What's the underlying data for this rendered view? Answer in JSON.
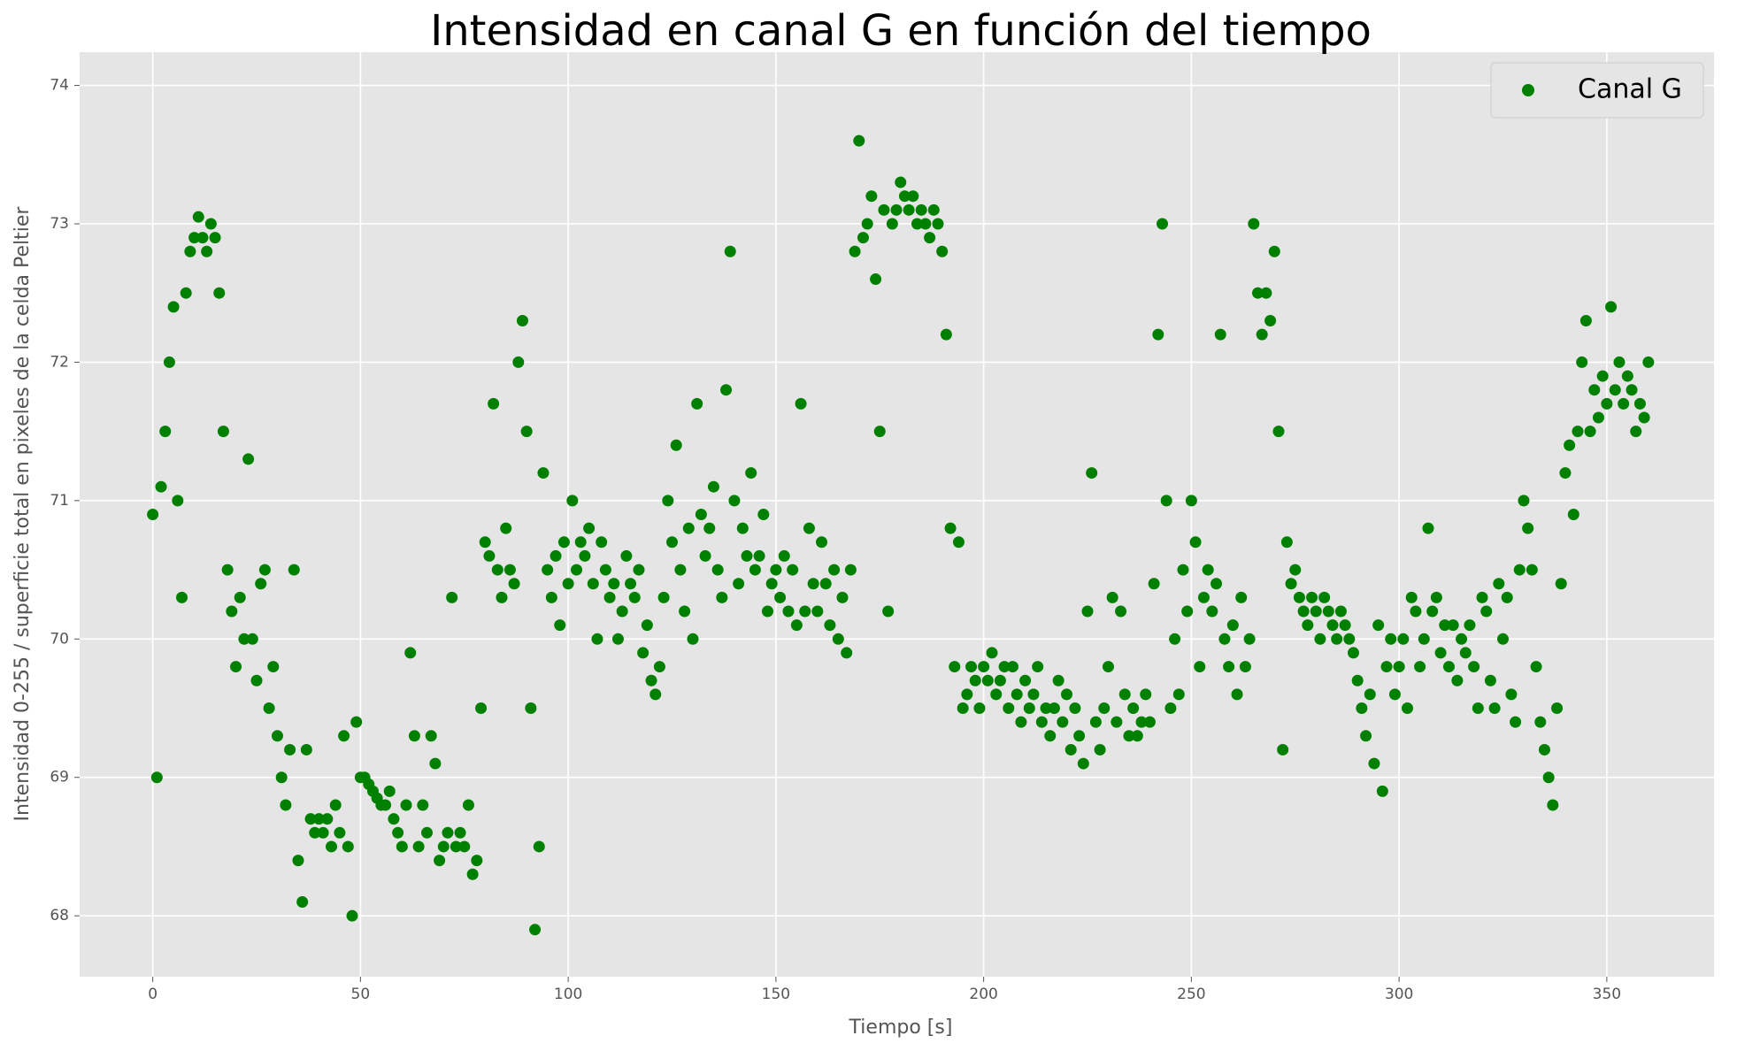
{
  "chart_data": {
    "type": "scatter",
    "title": "Intensidad en canal G en función del tiempo",
    "x_label": "Tiempo [s]",
    "y_label": "Intensidad 0-255 / superficie total en pixeles de la celda Peltier",
    "xlim": [
      -17.6,
      375.8
    ],
    "ylim": [
      67.56,
      74.24
    ],
    "xticks": [
      0,
      50,
      100,
      150,
      200,
      250,
      300,
      350
    ],
    "yticks": [
      68,
      69,
      70,
      71,
      72,
      73,
      74
    ],
    "grid": true,
    "legend": "upper right",
    "series": [
      {
        "name": "Canal G",
        "color": "#008000",
        "x": [
          0,
          1,
          2,
          3,
          4,
          5,
          6,
          7,
          8,
          9,
          10,
          11,
          12,
          13,
          14,
          15,
          16,
          17,
          18,
          19,
          20,
          21,
          22,
          23,
          24,
          25,
          26,
          27,
          28,
          29,
          30,
          31,
          32,
          33,
          34,
          35,
          36,
          37,
          38,
          39,
          40,
          41,
          42,
          43,
          44,
          45,
          46,
          47,
          48,
          49,
          50,
          51,
          52,
          53,
          54,
          55,
          56,
          57,
          58,
          59,
          60,
          61,
          62,
          63,
          64,
          65,
          66,
          67,
          68,
          69,
          70,
          71,
          72,
          73,
          74,
          75,
          76,
          77,
          78,
          79,
          80,
          81,
          82,
          83,
          84,
          85,
          86,
          87,
          88,
          89,
          90,
          91,
          92,
          93,
          94,
          95,
          96,
          97,
          98,
          99,
          100,
          101,
          102,
          103,
          104,
          105,
          106,
          107,
          108,
          109,
          110,
          111,
          112,
          113,
          114,
          115,
          116,
          117,
          118,
          119,
          120,
          121,
          122,
          123,
          124,
          125,
          126,
          127,
          128,
          129,
          130,
          131,
          132,
          133,
          134,
          135,
          136,
          137,
          138,
          139,
          140,
          141,
          142,
          143,
          144,
          145,
          146,
          147,
          148,
          149,
          150,
          151,
          152,
          153,
          154,
          155,
          156,
          157,
          158,
          159,
          160,
          161,
          162,
          163,
          164,
          165,
          166,
          167,
          168,
          169,
          170,
          171,
          172,
          173,
          174,
          175,
          176,
          177,
          178,
          179,
          180,
          181,
          182,
          183,
          184,
          185,
          186,
          187,
          188,
          189,
          190,
          191,
          192,
          193,
          194,
          195,
          196,
          197,
          198,
          199,
          200,
          201,
          202,
          203,
          204,
          205,
          206,
          207,
          208,
          209,
          210,
          211,
          212,
          213,
          214,
          215,
          216,
          217,
          218,
          219,
          220,
          221,
          222,
          223,
          224,
          225,
          226,
          227,
          228,
          229,
          230,
          231,
          232,
          233,
          234,
          235,
          236,
          237,
          238,
          239,
          240,
          241,
          242,
          243,
          244,
          245,
          246,
          247,
          248,
          249,
          250,
          251,
          252,
          253,
          254,
          255,
          256,
          257,
          258,
          259,
          260,
          261,
          262,
          263,
          264,
          265,
          266,
          267,
          268,
          269,
          270,
          271,
          272,
          273,
          274,
          275,
          276,
          277,
          278,
          279,
          280,
          281,
          282,
          283,
          284,
          285,
          286,
          287,
          288,
          289,
          290,
          291,
          292,
          293,
          294,
          295,
          296,
          297,
          298,
          299,
          300,
          301,
          302,
          303,
          304,
          305,
          306,
          307,
          308,
          309,
          310,
          311,
          312,
          313,
          314,
          315,
          316,
          317,
          318,
          319,
          320,
          321,
          322,
          323,
          324,
          325,
          326,
          327,
          328,
          329,
          330,
          331,
          332,
          333,
          334,
          335,
          336,
          337,
          338,
          339,
          340,
          341,
          342,
          343,
          344,
          345,
          346,
          347,
          348,
          349,
          350,
          351,
          352,
          353,
          354,
          355,
          356,
          357,
          358,
          359,
          360
        ],
        "values": [
          70.9,
          69.0,
          71.1,
          71.5,
          72.0,
          72.4,
          71.0,
          70.3,
          72.5,
          72.8,
          72.9,
          73.05,
          72.9,
          72.8,
          73.0,
          72.9,
          72.5,
          71.5,
          70.5,
          70.2,
          69.8,
          70.3,
          70.0,
          71.3,
          70.0,
          69.7,
          70.4,
          70.5,
          69.5,
          69.8,
          69.3,
          69.0,
          68.8,
          69.2,
          70.5,
          68.4,
          68.1,
          69.2,
          68.7,
          68.6,
          68.7,
          68.6,
          68.7,
          68.5,
          68.8,
          68.6,
          69.3,
          68.5,
          68.0,
          69.4,
          69.0,
          69.0,
          68.95,
          68.9,
          68.85,
          68.8,
          68.8,
          68.9,
          68.7,
          68.6,
          68.5,
          68.8,
          69.9,
          69.3,
          68.5,
          68.8,
          68.6,
          69.3,
          69.1,
          68.4,
          68.5,
          68.6,
          70.3,
          68.5,
          68.6,
          68.5,
          68.8,
          68.3,
          68.4,
          69.5,
          70.7,
          70.6,
          71.7,
          70.5,
          70.3,
          70.8,
          70.5,
          70.4,
          72.0,
          72.3,
          71.5,
          69.5,
          67.9,
          68.5,
          71.2,
          70.5,
          70.3,
          70.6,
          70.1,
          70.7,
          70.4,
          71.0,
          70.5,
          70.7,
          70.6,
          70.8,
          70.4,
          70.0,
          70.7,
          70.5,
          70.3,
          70.4,
          70.0,
          70.2,
          70.6,
          70.4,
          70.3,
          70.5,
          69.9,
          70.1,
          69.7,
          69.6,
          69.8,
          70.3,
          71.0,
          70.7,
          71.4,
          70.5,
          70.2,
          70.8,
          70.0,
          71.7,
          70.9,
          70.6,
          70.8,
          71.1,
          70.5,
          70.3,
          71.8,
          72.8,
          71.0,
          70.4,
          70.8,
          70.6,
          71.2,
          70.5,
          70.6,
          70.9,
          70.2,
          70.4,
          70.5,
          70.3,
          70.6,
          70.2,
          70.5,
          70.1,
          71.7,
          70.2,
          70.8,
          70.4,
          70.2,
          70.7,
          70.4,
          70.1,
          70.5,
          70.0,
          70.3,
          69.9,
          70.5,
          72.8,
          73.6,
          72.9,
          73.0,
          73.2,
          72.6,
          71.5,
          73.1,
          70.2,
          73.0,
          73.1,
          73.3,
          73.2,
          73.1,
          73.2,
          73.0,
          73.1,
          73.0,
          72.9,
          73.1,
          73.0,
          72.8,
          72.2,
          70.8,
          69.8,
          70.7,
          69.5,
          69.6,
          69.8,
          69.7,
          69.5,
          69.8,
          69.7,
          69.9,
          69.6,
          69.7,
          69.8,
          69.5,
          69.8,
          69.6,
          69.4,
          69.7,
          69.5,
          69.6,
          69.8,
          69.4,
          69.5,
          69.3,
          69.5,
          69.7,
          69.4,
          69.6,
          69.2,
          69.5,
          69.3,
          69.1,
          70.2,
          71.2,
          69.4,
          69.2,
          69.5,
          69.8,
          70.3,
          69.4,
          70.2,
          69.6,
          69.3,
          69.5,
          69.3,
          69.4,
          69.6,
          69.4,
          70.4,
          72.2,
          73.0,
          71.0,
          69.5,
          70.0,
          69.6,
          70.5,
          70.2,
          71.0,
          70.7,
          69.8,
          70.3,
          70.5,
          70.2,
          70.4,
          72.2,
          70.0,
          69.8,
          70.1,
          69.6,
          70.3,
          69.8,
          70.0,
          73.0,
          72.5,
          72.2,
          72.5,
          72.3,
          72.8,
          71.5,
          69.2,
          70.7,
          70.4,
          70.5,
          70.3,
          70.2,
          70.1,
          70.3,
          70.2,
          70.0,
          70.3,
          70.2,
          70.1,
          70.0,
          70.2,
          70.1,
          70.0,
          69.9,
          69.7,
          69.5,
          69.3,
          69.6,
          69.1,
          70.1,
          68.9,
          69.8,
          70.0,
          69.6,
          69.8,
          70.0,
          69.5,
          70.3,
          70.2,
          69.8,
          70.0,
          70.8,
          70.2,
          70.3,
          69.9,
          70.1,
          69.8,
          70.1,
          69.7,
          70.0,
          69.9,
          70.1,
          69.8,
          69.5,
          70.3,
          70.2,
          69.7,
          69.5,
          70.4,
          70.0,
          70.3,
          69.6,
          69.4,
          70.5,
          71.0,
          70.8,
          70.5,
          69.8,
          69.4,
          69.2,
          69.0,
          68.8,
          69.5,
          70.4,
          71.2,
          71.4,
          70.9,
          71.5,
          72.0,
          72.3,
          71.5,
          71.8,
          71.6,
          71.9,
          71.7,
          72.4,
          71.8,
          72.0,
          71.7,
          71.9,
          71.8,
          71.5,
          71.7,
          71.6,
          72.0
        ]
      }
    ]
  }
}
